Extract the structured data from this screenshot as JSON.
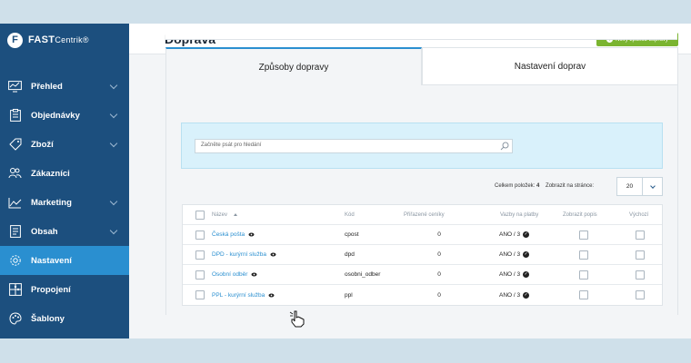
{
  "brand": {
    "logo_letter": "F",
    "name_bold": "FAST",
    "name_thin": "Centrik",
    "mark": "®",
    "sidebar_color": "#1c4f7e",
    "active_color": "#2a8fd0",
    "accent_green": "#7ab430"
  },
  "sidebar": {
    "items": [
      {
        "label": "Přehled",
        "icon": "dashboard-icon",
        "has_chevron": true,
        "active": false
      },
      {
        "label": "Objednávky",
        "icon": "clipboard-icon",
        "has_chevron": true,
        "active": false
      },
      {
        "label": "Zboží",
        "icon": "tag-icon",
        "has_chevron": true,
        "active": false
      },
      {
        "label": "Zákazníci",
        "icon": "users-icon",
        "has_chevron": false,
        "active": false
      },
      {
        "label": "Marketing",
        "icon": "chart-line-icon",
        "has_chevron": true,
        "active": false
      },
      {
        "label": "Obsah",
        "icon": "document-icon",
        "has_chevron": true,
        "active": false
      },
      {
        "label": "Nastavení",
        "icon": "gear-icon",
        "has_chevron": false,
        "active": true
      },
      {
        "label": "Propojení",
        "icon": "puzzle-icon",
        "has_chevron": false,
        "active": false
      },
      {
        "label": "Šablony",
        "icon": "palette-icon",
        "has_chevron": false,
        "active": false
      }
    ]
  },
  "header": {
    "title": "Doprava",
    "add_button": "Nový způsob dopravy"
  },
  "tabs": [
    {
      "label": "Způsoby dopravy",
      "active": true
    },
    {
      "label": "Nastavení doprav",
      "active": false
    }
  ],
  "search": {
    "placeholder": "Začněte psát pro hledání"
  },
  "list_meta": {
    "total_label": "Celkem položek:",
    "total_value": "4",
    "per_page_label": "Zobrazit na stránce:",
    "per_page_value": "20"
  },
  "table": {
    "headers": {
      "name": "Název",
      "code": "Kód",
      "pricelists": "Přiřazené ceníky",
      "payments": "Vazby na platby",
      "show_description": "Zobrazit popis",
      "default": "Výchozí"
    },
    "rows": [
      {
        "name": "Česká pošta",
        "code": "cpost",
        "pricelists": "0",
        "payments": "ANO / 3"
      },
      {
        "name": "DPD - kurýrní služba",
        "code": "dpd",
        "pricelists": "0",
        "payments": "ANO / 3"
      },
      {
        "name": "Osobní odběr",
        "code": "osobni_odber",
        "pricelists": "0",
        "payments": "ANO / 3"
      },
      {
        "name": "PPL - kurýrní služba",
        "code": "ppl",
        "pricelists": "0",
        "payments": "ANO / 3"
      }
    ]
  }
}
